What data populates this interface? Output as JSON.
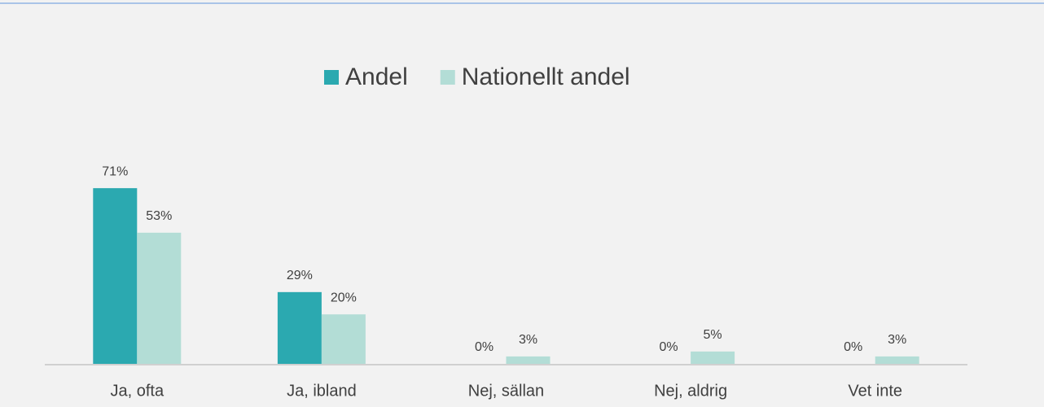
{
  "chart_data": {
    "type": "bar",
    "categories": [
      "Ja, ofta",
      "Ja, ibland",
      "Nej, sällan",
      "Nej, aldrig",
      "Vet inte"
    ],
    "series": [
      {
        "name": "Andel",
        "color": "#2ba9b0",
        "values": [
          71,
          29,
          0,
          0,
          0
        ],
        "value_labels": [
          "71%",
          "29%",
          "0%",
          "0%",
          "0%"
        ]
      },
      {
        "name": "Nationellt andel",
        "color": "#b3ddd6",
        "values": [
          53,
          20,
          3,
          5,
          3
        ],
        "value_labels": [
          "53%",
          "20%",
          "3%",
          "5%",
          "3%"
        ]
      }
    ],
    "legend": "top"
  }
}
